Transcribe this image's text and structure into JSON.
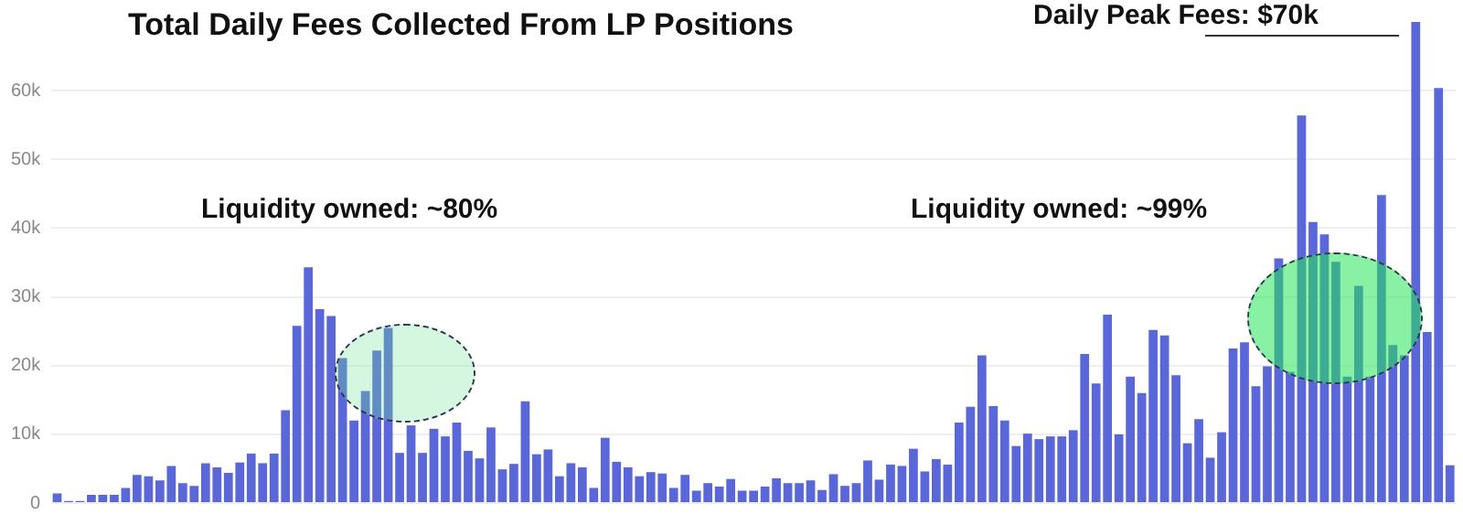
{
  "chart_data": {
    "type": "bar",
    "title": "Total Daily Fees Collected From LP Positions",
    "categories": [
      null,
      null,
      null,
      null,
      null,
      null,
      null,
      null,
      null,
      null,
      null,
      null,
      null,
      null,
      null,
      null,
      null,
      null,
      null,
      null,
      null,
      null,
      null,
      null,
      null,
      null,
      null,
      null,
      null,
      null,
      null,
      null,
      null,
      null,
      null,
      null,
      null,
      null,
      null,
      null,
      null,
      null,
      null,
      null,
      null,
      null,
      null,
      null,
      null,
      null,
      null,
      null,
      null,
      null,
      null,
      null,
      null,
      null,
      null,
      null,
      null,
      null,
      null,
      null,
      null,
      null,
      null,
      null,
      null,
      null,
      null,
      null,
      null,
      null,
      null,
      null,
      null,
      null,
      null,
      null,
      null,
      null,
      null,
      null,
      null,
      null,
      null,
      null,
      null,
      null,
      null,
      null,
      null,
      null,
      null,
      null,
      null,
      null,
      null,
      null,
      null,
      null,
      null,
      null,
      null,
      null,
      null,
      null,
      null,
      null,
      null,
      null,
      null,
      null,
      null,
      null,
      null,
      null,
      null,
      null,
      null,
      null,
      null
    ],
    "values": [
      1400,
      300,
      300,
      1200,
      1200,
      1200,
      2200,
      4100,
      3900,
      3300,
      5400,
      2900,
      2500,
      5800,
      5200,
      4400,
      5900,
      7200,
      5800,
      7200,
      13500,
      25800,
      34300,
      28200,
      27200,
      21100,
      12000,
      16300,
      22200,
      25500,
      7300,
      11300,
      7300,
      10800,
      9700,
      11700,
      7600,
      6500,
      11000,
      4900,
      5700,
      14800,
      7100,
      7800,
      3900,
      5800,
      5200,
      2200,
      9500,
      6000,
      5200,
      3900,
      4500,
      4300,
      2200,
      4100,
      1800,
      2900,
      2400,
      3500,
      1800,
      1800,
      2400,
      3600,
      2900,
      2900,
      3300,
      1900,
      4200,
      2500,
      2900,
      6200,
      3400,
      5600,
      5400,
      7900,
      4600,
      6400,
      5600,
      11700,
      14000,
      21500,
      14100,
      12000,
      8300,
      10100,
      9300,
      9700,
      9700,
      10600,
      21700,
      17400,
      27400,
      10000,
      18400,
      16000,
      25200,
      24400,
      18600,
      8700,
      12200,
      6600,
      10300,
      22500,
      23400,
      17000,
      19900,
      35600,
      19100,
      56400,
      40900,
      39100,
      35100,
      18400,
      31600,
      18400,
      44800,
      23000,
      21500,
      70000,
      24900,
      60400,
      5500
    ],
    "color": "#5a67d8",
    "ylim": [
      0,
      70000
    ],
    "yticks": [
      0,
      {
        "value": 10000,
        "label": "10k"
      },
      {
        "value": 20000,
        "label": "20k"
      },
      {
        "value": 30000,
        "label": "30k"
      },
      {
        "value": 40000,
        "label": "40k"
      },
      {
        "value": 50000,
        "label": "50k"
      },
      {
        "value": 60000,
        "label": "60k"
      }
    ],
    "grid": "y",
    "tick_labels": "y",
    "annotations": [
      "Liquidity owned: ~80%",
      "Liquidity owned: ~99%",
      "Daily Peak Fees: $70k"
    ]
  }
}
